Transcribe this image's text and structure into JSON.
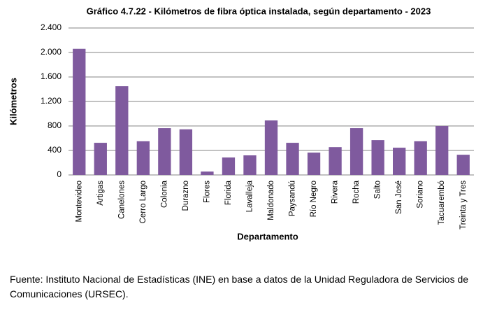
{
  "chart_data": {
    "type": "bar",
    "title": "Gráfico 4.7.22 -  Kilómetros de fibra óptica instalada, según departamento - 2023",
    "y_label": "Kilómetros",
    "x_label": "Departamento",
    "source": "Fuente: Instituto Nacional de Estadísticas (INE) en base a datos de la Unidad Reguladora de Servicios de Comunicaciones (URSEC).",
    "categories": [
      "Montevideo",
      "Artigas",
      "Canelones",
      "Cerro Largo",
      "Colonia",
      "Durazno",
      "Flores",
      "Florida",
      "Lavalleja",
      "Maldonado",
      "Paysandú",
      "Río Negro",
      "Rivera",
      "Rocha",
      "Salto",
      "San José",
      "Soriano",
      "Tacuarembó",
      "Treinta y Tres"
    ],
    "values": [
      2060,
      525,
      1450,
      550,
      765,
      745,
      55,
      285,
      320,
      890,
      525,
      365,
      455,
      765,
      570,
      445,
      550,
      800,
      330
    ],
    "color": "#7f5a9e",
    "ylim": [
      0,
      2400
    ],
    "yticks": [
      0,
      400,
      800,
      {
        "value": 1200,
        "label": "1.200"
      },
      {
        "value": 1600,
        "label": "1.600"
      },
      {
        "value": 2000,
        "label": "2.000"
      },
      {
        "value": 2400,
        "label": "2.400"
      }
    ],
    "grid": true
  }
}
